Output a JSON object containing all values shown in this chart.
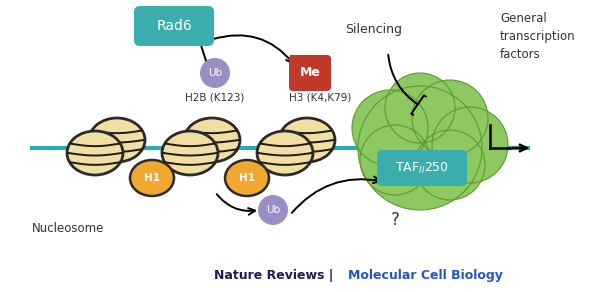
{
  "bg_color": "#ffffff",
  "rad6_box_color": "#3aadad",
  "rad6_text": "Rad6",
  "ub_color": "#9b8ec4",
  "ub_text": "Ub",
  "me_color": "#c0392b",
  "me_text": "Me",
  "disk_color": "#f0dfa0",
  "disk_edge": "#2a2a2a",
  "h1_color": "#f0a830",
  "h1_edge": "#2a2a2a",
  "dna_color": "#2aacac",
  "taf_blob_color": "#8ec860",
  "taf_blob_edge": "#5a9a30",
  "taf_inner_color": "#3aadad",
  "silencing_text": "Silencing",
  "general_tf_text": "General\ntranscription\nfactors",
  "h2b_text": "H2B (K123)",
  "h3_text": "H3 (K4,K79)",
  "nucleosome_text": "Nucleosome",
  "h1_text": "H1",
  "question_mark": "?",
  "title_black": "Nature Reviews | ",
  "title_blue": "Molecular Cell Biology"
}
